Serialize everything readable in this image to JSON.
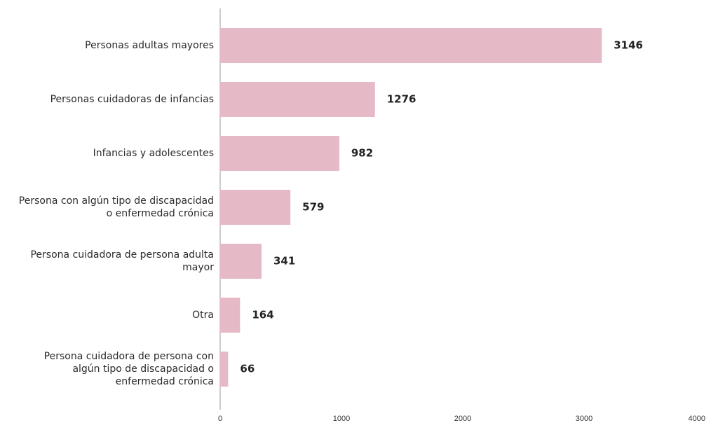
{
  "chart_data": {
    "type": "bar",
    "orientation": "horizontal",
    "categories": [
      "Personas adultas mayores",
      "Personas cuidadoras de infancias",
      "Infancias y adolescentes",
      "Persona con algún tipo de discapacidad o enfermedad crónica",
      "Persona cuidadora de persona adulta mayor",
      "Otra",
      "Persona cuidadora de persona con algún tipo de discapacidad o enfermedad crónica"
    ],
    "category_label_lines": [
      [
        "Personas adultas mayores"
      ],
      [
        "Personas cuidadoras de infancias"
      ],
      [
        "Infancias y adolescentes"
      ],
      [
        "Persona con algún tipo de discapacidad",
        "o enfermedad crónica"
      ],
      [
        "Persona cuidadora de persona adulta",
        "mayor"
      ],
      [
        "Otra"
      ],
      [
        "Persona cuidadora de persona con",
        "algún tipo de discapacidad o",
        "enfermedad crónica"
      ]
    ],
    "values": [
      3146,
      1276,
      982,
      579,
      341,
      164,
      66
    ],
    "value_labels": [
      "3146",
      "1276",
      "982",
      "579",
      "341",
      "164",
      "66"
    ],
    "xlim": [
      0,
      4000
    ],
    "x_ticks": [
      0,
      1000,
      2000,
      3000,
      4000
    ],
    "x_tick_labels": [
      "0",
      "1000",
      "2000",
      "3000",
      "4000"
    ],
    "title": "",
    "xlabel": "",
    "ylabel": "",
    "grid": false,
    "legend": "none",
    "bar_color": "#e6b9c6",
    "axis_color": "#9a9a9a"
  }
}
